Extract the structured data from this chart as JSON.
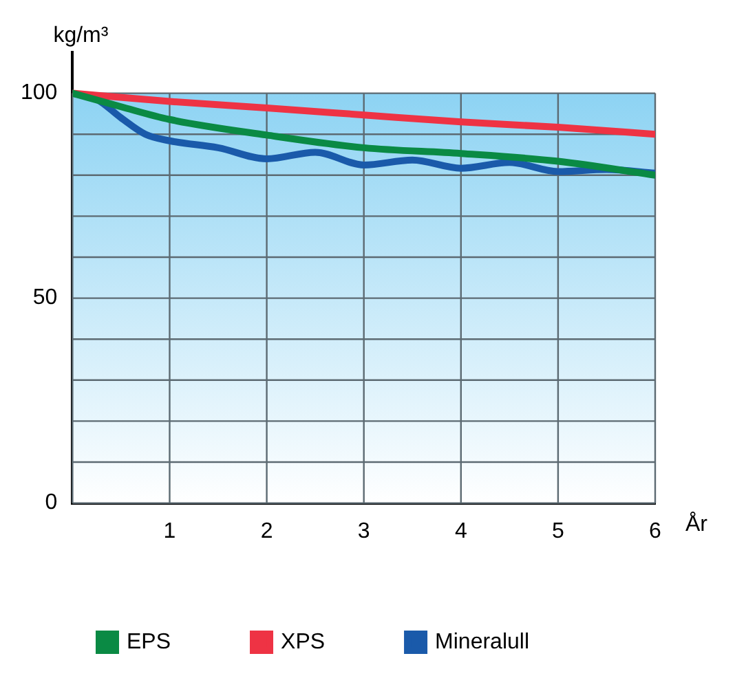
{
  "chart_data": {
    "type": "line",
    "xlabel": "År",
    "ylabel": "kg/m³",
    "xlim": [
      0,
      6
    ],
    "xticks": [
      {
        "value": 0,
        "label": null
      },
      1,
      2,
      3,
      4,
      5,
      6
    ],
    "ylim": [
      0,
      110
    ],
    "yticks": [
      0,
      {
        "value": 10,
        "label": null
      },
      {
        "value": 20,
        "label": null
      },
      {
        "value": 30,
        "label": null
      },
      {
        "value": 40,
        "label": null
      },
      50,
      {
        "value": 60,
        "label": null
      },
      {
        "value": 70,
        "label": null
      },
      {
        "value": 80,
        "label": null
      },
      {
        "value": 90,
        "label": null
      },
      100
    ],
    "grid": true,
    "legend": "bottom",
    "marker": "none",
    "line_style": "solid",
    "series": [
      {
        "name": "EPS",
        "color": "#0a8a44",
        "x": [
          0,
          0.5,
          1,
          2,
          3,
          4,
          5,
          6
        ],
        "values": [
          100,
          96.7,
          93.6,
          89.8,
          86.7,
          85.3,
          83.4,
          80
        ]
      },
      {
        "name": "XPS",
        "color": "#ee3344",
        "x": [
          0,
          1,
          2,
          3,
          4,
          5,
          6
        ],
        "values": [
          100,
          98,
          96.4,
          94.7,
          93,
          91.7,
          90
        ]
      },
      {
        "name": "Mineralull",
        "color": "#1a5aaa",
        "x": [
          0,
          0.25,
          0.5,
          0.75,
          1,
          1.5,
          2,
          2.5,
          3,
          3.5,
          4,
          4.5,
          5,
          5.5,
          6
        ],
        "values": [
          100,
          98.5,
          94,
          90,
          88.4,
          86.7,
          84,
          85.6,
          82.5,
          83.7,
          81.7,
          83.1,
          80.9,
          81.4,
          80.5
        ]
      }
    ]
  }
}
